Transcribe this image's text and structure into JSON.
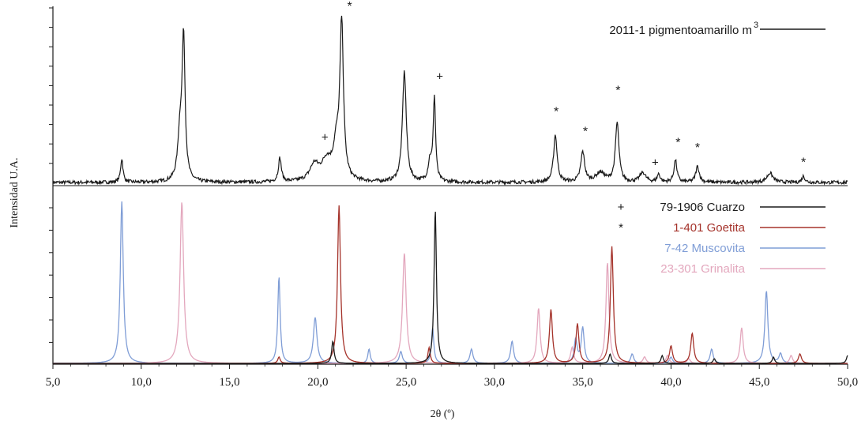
{
  "chart_data": {
    "type": "line",
    "xlabel": "2θ (º)",
    "ylabel": "Intensidad U.A.",
    "xlim": [
      5.0,
      50.0
    ],
    "x_ticks": [
      "5,0",
      "10,0",
      "15,0",
      "20,0",
      "25,0",
      "30,0",
      "35,0",
      "40,0",
      "45,0",
      "50,0"
    ],
    "x_tick_values": [
      5,
      10,
      15,
      20,
      25,
      30,
      35,
      40,
      45,
      50
    ],
    "grid": false,
    "panels": [
      {
        "name": "top",
        "legend": [
          {
            "marker": "",
            "label": "2011-1 pigmentoamarillo m",
            "superscript": "3",
            "color": "#1a1a1a"
          }
        ],
        "series": [
          {
            "name": "2011-1 pigmentoamarillo m",
            "color": "#1a1a1a",
            "baseline": 3,
            "peaks": [
              {
                "x": 8.9,
                "h": 30,
                "w": 0.08
              },
              {
                "x": 12.2,
                "h": 60,
                "w": 0.15
              },
              {
                "x": 12.4,
                "h": 175,
                "w": 0.1
              },
              {
                "x": 17.85,
                "h": 30,
                "w": 0.1
              },
              {
                "x": 19.8,
                "h": 20,
                "w": 0.3
              },
              {
                "x": 20.5,
                "h": 25,
                "w": 0.35
              },
              {
                "x": 21.05,
                "h": 40,
                "w": 0.2
              },
              {
                "x": 21.35,
                "h": 195,
                "w": 0.12
              },
              {
                "x": 24.9,
                "h": 140,
                "w": 0.13
              },
              {
                "x": 26.6,
                "h": 105,
                "w": 0.08
              },
              {
                "x": 26.35,
                "h": 25,
                "w": 0.12
              },
              {
                "x": 33.45,
                "h": 60,
                "w": 0.12
              },
              {
                "x": 35.0,
                "h": 38,
                "w": 0.13
              },
              {
                "x": 36.0,
                "h": 12,
                "w": 0.3
              },
              {
                "x": 36.95,
                "h": 75,
                "w": 0.12
              },
              {
                "x": 38.4,
                "h": 12,
                "w": 0.2
              },
              {
                "x": 39.3,
                "h": 10,
                "w": 0.1
              },
              {
                "x": 40.25,
                "h": 28,
                "w": 0.1
              },
              {
                "x": 41.5,
                "h": 20,
                "w": 0.12
              },
              {
                "x": 45.6,
                "h": 12,
                "w": 0.2
              },
              {
                "x": 47.5,
                "h": 8,
                "w": 0.1
              }
            ]
          }
        ],
        "annotations": [
          {
            "symbol": "*",
            "x": 21.8,
            "y_rel": 0.97
          },
          {
            "symbol": "+",
            "x": 20.4,
            "y_rel": 0.24
          },
          {
            "symbol": "+",
            "x": 26.9,
            "y_rel": 0.58
          },
          {
            "symbol": "*",
            "x": 33.5,
            "y_rel": 0.38
          },
          {
            "symbol": "*",
            "x": 35.15,
            "y_rel": 0.27
          },
          {
            "symbol": "*",
            "x": 37.0,
            "y_rel": 0.5
          },
          {
            "symbol": "+",
            "x": 39.1,
            "y_rel": 0.1
          },
          {
            "symbol": "*",
            "x": 40.4,
            "y_rel": 0.21
          },
          {
            "symbol": "*",
            "x": 41.5,
            "y_rel": 0.18
          },
          {
            "symbol": "*",
            "x": 47.5,
            "y_rel": 0.1
          }
        ]
      },
      {
        "name": "bottom",
        "legend": [
          {
            "marker": "+",
            "label": "79-1906 Cuarzo",
            "color": "#1c1c1c"
          },
          {
            "marker": "*",
            "label": "1-401 Goetita",
            "color": "#a5332b"
          },
          {
            "marker": "",
            "label": "7-42 Muscovita",
            "color": "#7f9dd6"
          },
          {
            "marker": "",
            "label": "23-301 Grinalita",
            "color": "#e3a7bd"
          }
        ],
        "series": [
          {
            "name": "7-42 Muscovita",
            "color": "#7f9dd6",
            "peaks": [
              {
                "x": 8.9,
                "h": 205,
                "w": 0.1
              },
              {
                "x": 17.8,
                "h": 110,
                "w": 0.08
              },
              {
                "x": 19.85,
                "h": 58,
                "w": 0.12
              },
              {
                "x": 22.9,
                "h": 18,
                "w": 0.08
              },
              {
                "x": 24.7,
                "h": 15,
                "w": 0.1
              },
              {
                "x": 26.5,
                "h": 45,
                "w": 0.08
              },
              {
                "x": 28.7,
                "h": 18,
                "w": 0.1
              },
              {
                "x": 31.0,
                "h": 28,
                "w": 0.1
              },
              {
                "x": 34.6,
                "h": 30,
                "w": 0.1
              },
              {
                "x": 35.0,
                "h": 45,
                "w": 0.1
              },
              {
                "x": 37.8,
                "h": 12,
                "w": 0.1
              },
              {
                "x": 40.0,
                "h": 8,
                "w": 0.1
              },
              {
                "x": 42.3,
                "h": 18,
                "w": 0.1
              },
              {
                "x": 45.4,
                "h": 92,
                "w": 0.1
              },
              {
                "x": 46.2,
                "h": 12,
                "w": 0.1
              }
            ]
          },
          {
            "name": "23-301 Grinalita",
            "color": "#e3a7bd",
            "peaks": [
              {
                "x": 12.3,
                "h": 205,
                "w": 0.12
              },
              {
                "x": 24.9,
                "h": 140,
                "w": 0.12
              },
              {
                "x": 32.5,
                "h": 70,
                "w": 0.1
              },
              {
                "x": 34.4,
                "h": 20,
                "w": 0.1
              },
              {
                "x": 36.4,
                "h": 128,
                "w": 0.1
              },
              {
                "x": 38.5,
                "h": 8,
                "w": 0.1
              },
              {
                "x": 39.8,
                "h": 10,
                "w": 0.1
              },
              {
                "x": 41.0,
                "h": 6,
                "w": 0.1
              },
              {
                "x": 44.0,
                "h": 45,
                "w": 0.1
              },
              {
                "x": 46.8,
                "h": 10,
                "w": 0.1
              }
            ]
          },
          {
            "name": "1-401 Goetita",
            "color": "#a5332b",
            "peaks": [
              {
                "x": 17.8,
                "h": 8,
                "w": 0.08
              },
              {
                "x": 21.2,
                "h": 200,
                "w": 0.1
              },
              {
                "x": 26.3,
                "h": 20,
                "w": 0.08
              },
              {
                "x": 33.2,
                "h": 68,
                "w": 0.1
              },
              {
                "x": 34.7,
                "h": 50,
                "w": 0.1
              },
              {
                "x": 36.65,
                "h": 148,
                "w": 0.1
              },
              {
                "x": 40.0,
                "h": 22,
                "w": 0.1
              },
              {
                "x": 41.2,
                "h": 38,
                "w": 0.1
              },
              {
                "x": 47.3,
                "h": 12,
                "w": 0.1
              }
            ]
          },
          {
            "name": "79-1906 Cuarzo",
            "color": "#1c1c1c",
            "peaks": [
              {
                "x": 20.85,
                "h": 28,
                "w": 0.08
              },
              {
                "x": 26.65,
                "h": 195,
                "w": 0.08
              },
              {
                "x": 36.55,
                "h": 12,
                "w": 0.08
              },
              {
                "x": 39.5,
                "h": 10,
                "w": 0.08
              },
              {
                "x": 42.45,
                "h": 6,
                "w": 0.08
              },
              {
                "x": 45.8,
                "h": 8,
                "w": 0.08
              },
              {
                "x": 50.0,
                "h": 10,
                "w": 0.08
              }
            ]
          }
        ]
      }
    ]
  }
}
